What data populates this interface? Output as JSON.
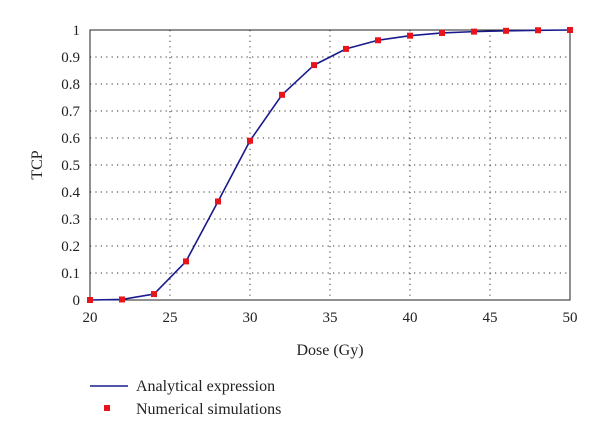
{
  "chart_data": {
    "type": "line",
    "xlabel": "Dose (Gy)",
    "ylabel": "TCP",
    "xlim": [
      20,
      50
    ],
    "ylim": [
      0,
      1
    ],
    "x_ticks": [
      "20",
      "25",
      "30",
      "35",
      "40",
      "45",
      "50"
    ],
    "y_ticks": [
      "0",
      "0.1",
      "0.2",
      "0.3",
      "0.4",
      "0.5",
      "0.6",
      "0.7",
      "0.8",
      "0.9",
      "1"
    ],
    "grid": true,
    "legend_position": "bottom",
    "series": [
      {
        "name": "Analytical expression",
        "style": "line",
        "color": "#1a1a8c",
        "x": [
          20,
          22,
          24,
          26,
          28,
          30,
          32,
          34,
          36,
          38,
          40,
          42,
          44,
          46,
          48,
          50
        ],
        "y": [
          0.0,
          0.002,
          0.022,
          0.143,
          0.365,
          0.59,
          0.76,
          0.87,
          0.93,
          0.962,
          0.979,
          0.989,
          0.994,
          0.997,
          0.999,
          1.0
        ]
      },
      {
        "name": "Numerical simulations",
        "style": "marker",
        "color": "#e8141c",
        "x": [
          20,
          22,
          24,
          26,
          28,
          30,
          32,
          34,
          36,
          38,
          40,
          42,
          44,
          46,
          48,
          50
        ],
        "y": [
          0.0,
          0.002,
          0.022,
          0.143,
          0.365,
          0.59,
          0.76,
          0.87,
          0.93,
          0.962,
          0.979,
          0.989,
          0.994,
          0.997,
          0.999,
          1.0
        ]
      }
    ]
  }
}
